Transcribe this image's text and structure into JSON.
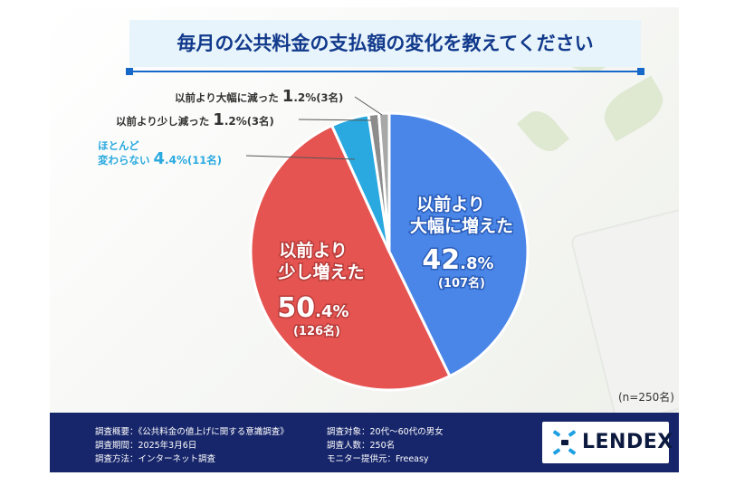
{
  "title": "毎月の公共料金の支払額の変化を教えてください",
  "sample_size": "(n=250名)",
  "chart_data": {
    "type": "pie",
    "title": "毎月の公共料金の支払額の変化を教えてください",
    "slices": [
      {
        "label": "以前より大幅に増えた",
        "label_lines": [
          "以前より",
          "大幅に増えた"
        ],
        "value": 42.8,
        "value_text": "42",
        "decimal_text": ".8%",
        "count_text": "(107名)",
        "color": "#4a86e8"
      },
      {
        "label": "以前より少し増えた",
        "label_lines": [
          "以前より",
          "少し増えた"
        ],
        "value": 50.4,
        "value_text": "50",
        "decimal_text": ".4%",
        "count_text": "(126名)",
        "color": "#e55451"
      },
      {
        "label": "ほとんど変わらない",
        "label_lines": [
          "ほとんど",
          "変わらない"
        ],
        "value": 4.4,
        "value_text": "4",
        "decimal_text": ".4%",
        "count_text": "(11名)",
        "color": "#29a9e0"
      },
      {
        "label": "以前より少し減った",
        "label_lines": [
          "以前より少し減った"
        ],
        "value": 1.2,
        "value_text": "1",
        "decimal_text": ".2%",
        "count_text": "(3名)",
        "color": "#8c8c8c"
      },
      {
        "label": "以前より大幅に減った",
        "label_lines": [
          "以前より大幅に減った"
        ],
        "value": 1.2,
        "value_text": "1",
        "decimal_text": ".2%",
        "count_text": "(3名)",
        "color": "#a8a8a8"
      }
    ]
  },
  "footer": {
    "left": [
      "調査概要：《公共料金の値上げに関する意識調査》",
      "調査期間：2025年3月6日",
      "調査方法：インターネット調査"
    ],
    "right": [
      "調査対象：20代〜60代の男女",
      "調査人数：250名",
      "モニター提供元：Freeasy"
    ],
    "logo_text": "LENDEX",
    "logo_icon": "lendex-logo-icon"
  },
  "colors": {
    "title_text": "#123a8c",
    "title_bg": "#e8f4fb",
    "footer_bg": "#17266b",
    "small_callout_text": "#29a9e0"
  }
}
